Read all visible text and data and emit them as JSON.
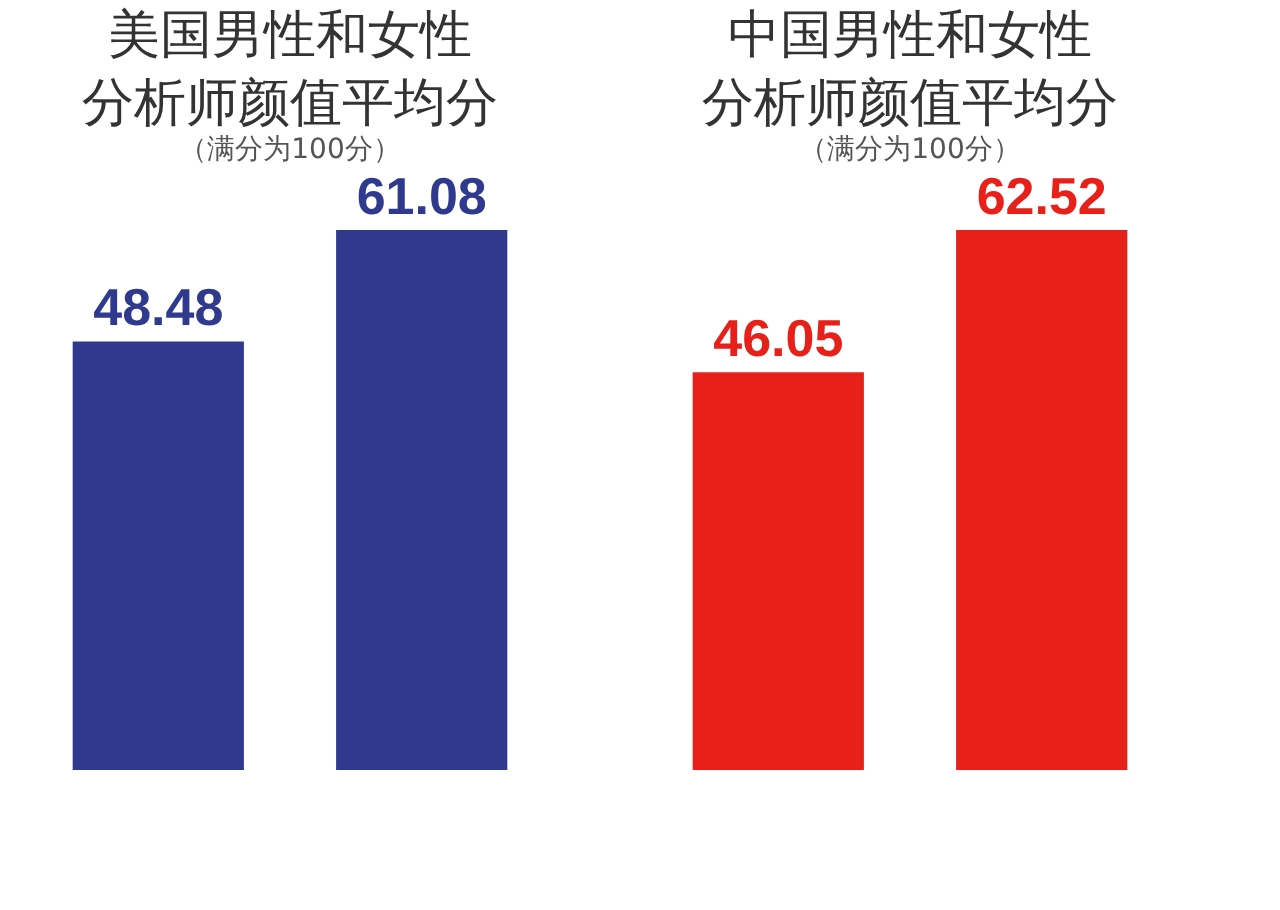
{
  "chart_data": [
    {
      "type": "bar",
      "title": "美国男性和女性分析师颜值平均分",
      "subtitle": "（满分为100分）",
      "categories": [
        null,
        null
      ],
      "values": [
        48.48,
        61.08
      ],
      "color": "#2f3a8f",
      "data_labels": true,
      "tick_labels": false
    },
    {
      "type": "bar",
      "title": "中国男性和女性分析师颜值平均分",
      "subtitle": "（满分为100分）",
      "categories": [
        null,
        null
      ],
      "values": [
        46.05,
        62.52
      ],
      "color": "#e8201a",
      "data_labels": true,
      "tick_labels": false
    }
  ]
}
